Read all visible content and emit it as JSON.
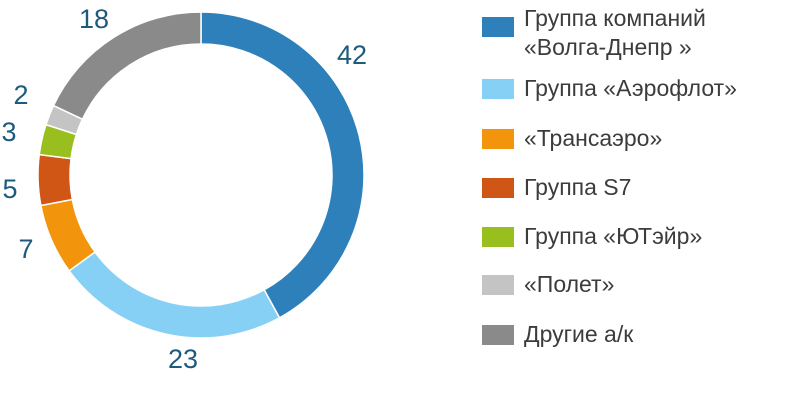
{
  "chart_data": {
    "type": "pie",
    "donut": true,
    "start_angle": "top",
    "direction": "clockwise",
    "title": "",
    "legend_position": "right",
    "series": [
      {
        "name": "Группа компаний\n«Волга-Днепр  »",
        "value": 42,
        "label": "42",
        "color": "#2e80bb"
      },
      {
        "name": "Группа «Аэрофлот»",
        "value": 23,
        "label": "23",
        "color": "#87d0f5"
      },
      {
        "name": "«Трансаэро»",
        "value": 7,
        "label": "7",
        "color": "#f2940c"
      },
      {
        "name": "Группа S7",
        "value": 5,
        "label": "5",
        "color": "#cf5614"
      },
      {
        "name": "Группа «ЮТэйр»",
        "value": 3,
        "label": "3",
        "color": "#98bf1e"
      },
      {
        "name": "«Полет»",
        "value": 2,
        "label": "2",
        "color": "#c4c4c4"
      },
      {
        "name": "Другие а/к",
        "value": 18,
        "label": "18",
        "color": "#8a8a8a"
      }
    ]
  }
}
